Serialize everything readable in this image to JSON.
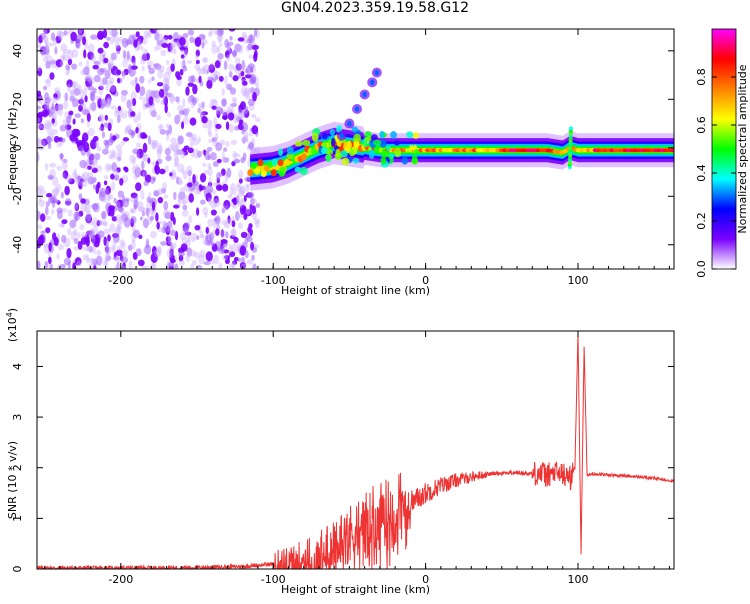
{
  "figure": {
    "title": "GN04.2023.359.19.58.G12"
  },
  "chart_data": [
    {
      "type": "heatmap",
      "xlabel": "Height of straight line (km)",
      "ylabel": "Frequency (Hz)",
      "xlim": [
        -255,
        163
      ],
      "ylim": [
        -50,
        49
      ],
      "x_ticks": [
        -200,
        -100,
        0,
        100
      ],
      "y_ticks": [
        -40,
        -20,
        0,
        20,
        40
      ],
      "colorbar": {
        "label": "Normalized spectral amplitude",
        "range": [
          0,
          1
        ],
        "ticks": [
          0.0,
          0.2,
          0.4,
          0.6,
          0.8
        ],
        "tick_labels": [
          "0.0",
          "0.2",
          "0.4",
          "0.6",
          "0.8"
        ],
        "colors": [
          "#ffffff",
          "#7a00ff",
          "#0000ff",
          "#00ffff",
          "#00ff00",
          "#ffff00",
          "#ff8000",
          "#ff0000",
          "#ff00ff"
        ]
      },
      "noise_region_x": [
        -255,
        -110
      ],
      "ridge": {
        "x": [
          -115,
          -100,
          -90,
          -80,
          -70,
          -60,
          -50,
          -40,
          -30,
          -20,
          -10,
          0,
          20,
          40,
          60,
          80,
          90,
          95,
          100,
          120,
          140,
          163
        ],
        "y": [
          -9,
          -8,
          -6,
          -3,
          0,
          2,
          1,
          0,
          -1,
          -1,
          -1,
          -1,
          -1,
          -1,
          -1,
          -1,
          -2,
          0,
          -1,
          -1,
          -1,
          -1
        ]
      },
      "branch": {
        "x": [
          -55,
          -50,
          -45,
          -40,
          -35,
          -32
        ],
        "y": [
          5,
          10,
          16,
          22,
          27,
          31
        ]
      },
      "grid": false
    },
    {
      "type": "line",
      "xlabel": "Height of straight line (km)",
      "ylabel": "SNR (10 * v/v)",
      "y_multiplier": "(x10",
      "y_multiplier_exp": "4",
      "y_multiplier_close": ")",
      "xlim": [
        -255,
        163
      ],
      "ylim": [
        0,
        4.7
      ],
      "x_ticks": [
        -200,
        -100,
        0,
        100
      ],
      "y_ticks": [
        0,
        1,
        2,
        3,
        4
      ],
      "color": "#ee3333",
      "grid": false,
      "series": [
        {
          "x": [
            -255,
            -200,
            -150,
            -120,
            -100,
            -90,
            -80,
            -70,
            -60,
            -50,
            -40,
            -30,
            -20,
            -10,
            0,
            10,
            20,
            30,
            40,
            50,
            60,
            70,
            75,
            80,
            85,
            90,
            95,
            98,
            100,
            102,
            104,
            106,
            110,
            120,
            130,
            140,
            150,
            163
          ],
          "y": [
            0.02,
            0.02,
            0.03,
            0.05,
            0.1,
            0.15,
            0.2,
            0.3,
            0.5,
            0.7,
            0.9,
            1.0,
            1.1,
            1.3,
            1.5,
            1.65,
            1.75,
            1.82,
            1.87,
            1.9,
            1.9,
            1.88,
            1.9,
            1.85,
            1.9,
            1.87,
            1.8,
            2.0,
            4.7,
            0.3,
            4.4,
            1.85,
            1.88,
            1.86,
            1.84,
            1.82,
            1.79,
            1.74
          ]
        }
      ]
    }
  ]
}
